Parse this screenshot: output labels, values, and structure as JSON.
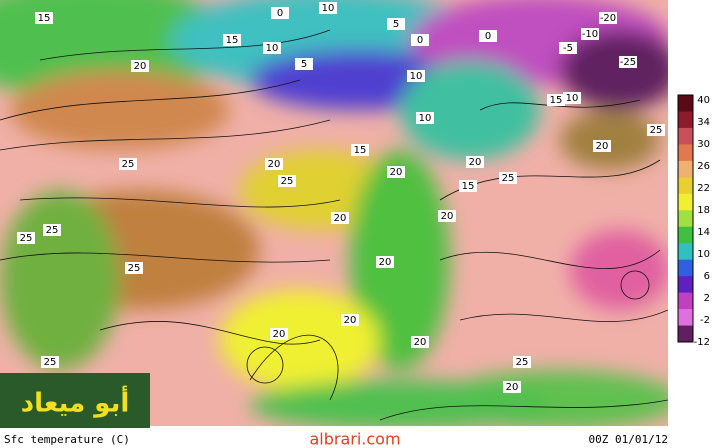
{
  "title": "Sfc temperature (C)",
  "timestamp": "00Z 01/01/12",
  "watermark": "albrari.com",
  "logo_text": "أبو ميعاد",
  "colorbar": {
    "labels": [
      "40",
      "34",
      "30",
      "26",
      "22",
      "18",
      "14",
      "10",
      "6",
      "2",
      "-2",
      "-12"
    ],
    "colors": [
      "#5a0a14",
      "#8c1c2c",
      "#c8505a",
      "#e07850",
      "#f0b070",
      "#e8d030",
      "#f0f030",
      "#a0e040",
      "#40c040",
      "#30c0c0",
      "#3060e0",
      "#6020c0",
      "#c040c0",
      "#e070e0",
      "#602060"
    ]
  },
  "contour_labels": [
    "15",
    "15",
    "20",
    "0",
    "10",
    "10",
    "5",
    "0",
    "5",
    "10",
    "0",
    "-20",
    "-5",
    "-10",
    "-25",
    "15",
    "10",
    "25",
    "20",
    "25",
    "20",
    "25",
    "15",
    "20",
    "10",
    "20",
    "15",
    "25",
    "20",
    "20",
    "20",
    "25",
    "25",
    "25",
    "20",
    "20",
    "20",
    "25",
    "25",
    "20"
  ]
}
